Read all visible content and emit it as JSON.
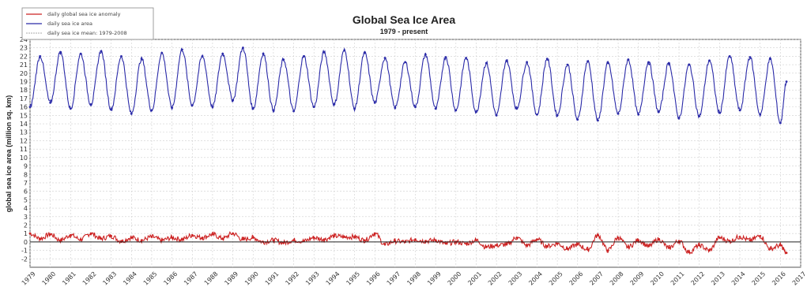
{
  "chart_data": {
    "type": "line",
    "title": "Global Sea Ice Area",
    "subtitle": "1979 - present",
    "ylabel": "global sea ice area (million sq. km)",
    "xlabel": "",
    "xlim": [
      1979,
      2017
    ],
    "ylim": [
      -3,
      24
    ],
    "grid": true,
    "legend_position": "top-left",
    "x_ticks": [
      "1979",
      "1980",
      "1981",
      "1982",
      "1983",
      "1984",
      "1985",
      "1986",
      "1987",
      "1988",
      "1989",
      "1990",
      "1991",
      "1992",
      "1993",
      "1994",
      "1995",
      "1996",
      "1997",
      "1998",
      "1999",
      "2000",
      "2001",
      "2002",
      "2003",
      "2004",
      "2005",
      "2006",
      "2007",
      "2008",
      "2009",
      "2010",
      "2011",
      "2012",
      "2013",
      "2014",
      "2015",
      "2016",
      "2017"
    ],
    "y_ticks": [
      -2,
      -1,
      0,
      1,
      2,
      3,
      4,
      5,
      6,
      7,
      8,
      9,
      10,
      11,
      12,
      13,
      14,
      15,
      16,
      17,
      18,
      19,
      20,
      21,
      22,
      23,
      24
    ],
    "series": [
      {
        "name": "daily global sea ice anomaly",
        "color": "#cc2222",
        "x": [
          1979,
          1979.5,
          1980,
          1980.5,
          1981,
          1981.5,
          1982,
          1982.5,
          1983,
          1983.5,
          1984,
          1984.5,
          1985,
          1985.5,
          1986,
          1986.5,
          1987,
          1987.5,
          1988,
          1988.5,
          1989,
          1989.5,
          1990,
          1990.5,
          1991,
          1991.5,
          1992,
          1992.5,
          1993,
          1993.5,
          1994,
          1994.5,
          1995,
          1995.5,
          1996,
          1996.5,
          1997,
          1997.5,
          1998,
          1998.5,
          1999,
          1999.5,
          2000,
          2000.5,
          2001,
          2001.5,
          2002,
          2002.5,
          2003,
          2003.5,
          2004,
          2004.5,
          2005,
          2005.5,
          2006,
          2006.5,
          2007,
          2007.5,
          2008,
          2008.5,
          2009,
          2009.5,
          2010,
          2010.5,
          2011,
          2011.5,
          2012,
          2012.5,
          2013,
          2013.5,
          2014,
          2014.5,
          2015,
          2015.5,
          2016,
          2016.3
        ],
        "values": [
          1.0,
          0.4,
          0.9,
          0.2,
          0.8,
          0.3,
          1.0,
          0.4,
          0.7,
          0.1,
          0.5,
          0.2,
          0.6,
          0.2,
          0.5,
          0.3,
          0.8,
          0.5,
          0.9,
          0.4,
          1.0,
          0.3,
          0.5,
          0.0,
          0.2,
          -0.1,
          0.2,
          0.1,
          0.5,
          0.3,
          0.7,
          0.6,
          0.6,
          0.2,
          1.0,
          -0.3,
          0.1,
          0.0,
          0.3,
          0.1,
          0.2,
          -0.2,
          0.0,
          -0.2,
          0.2,
          -0.6,
          -0.4,
          -0.3,
          0.5,
          -0.4,
          0.3,
          -0.5,
          -0.2,
          -0.8,
          -0.3,
          -0.9,
          0.8,
          -1.0,
          0.5,
          -0.6,
          0.2,
          -0.5,
          0.3,
          -0.7,
          0.1,
          -1.2,
          -0.4,
          -1.0,
          0.5,
          0.1,
          0.6,
          0.2,
          0.7,
          -0.8,
          -0.4,
          -1.3
        ]
      },
      {
        "name": "daily sea ice area",
        "color": "#2a2aa8",
        "x": [
          1979,
          1979.5,
          1980,
          1980.5,
          1981,
          1981.5,
          1982,
          1982.5,
          1983,
          1983.5,
          1984,
          1984.5,
          1985,
          1985.5,
          1986,
          1986.5,
          1987,
          1987.5,
          1988,
          1988.5,
          1989,
          1989.5,
          1990,
          1990.5,
          1991,
          1991.5,
          1992,
          1992.5,
          1993,
          1993.5,
          1994,
          1994.5,
          1995,
          1995.5,
          1996,
          1996.5,
          1997,
          1997.5,
          1998,
          1998.5,
          1999,
          1999.5,
          2000,
          2000.5,
          2001,
          2001.5,
          2002,
          2002.5,
          2003,
          2003.5,
          2004,
          2004.5,
          2005,
          2005.5,
          2006,
          2006.5,
          2007,
          2007.5,
          2008,
          2008.5,
          2009,
          2009.5,
          2010,
          2010.5,
          2011,
          2011.5,
          2012,
          2012.5,
          2013,
          2013.5,
          2014,
          2014.5,
          2015,
          2015.5,
          2016,
          2016.3
        ],
        "values": [
          16.0,
          22.0,
          16.5,
          22.5,
          15.8,
          22.3,
          16.3,
          22.6,
          15.7,
          22.0,
          15.2,
          21.7,
          15.6,
          22.4,
          15.9,
          22.8,
          16.2,
          22.0,
          16.0,
          22.3,
          16.8,
          23.0,
          15.8,
          22.3,
          15.6,
          21.6,
          15.5,
          22.0,
          16.0,
          22.5,
          16.3,
          22.7,
          15.8,
          22.4,
          16.5,
          21.8,
          15.9,
          21.3,
          16.0,
          22.2,
          15.8,
          21.9,
          15.6,
          21.8,
          15.4,
          21.2,
          15.0,
          21.5,
          15.8,
          21.3,
          15.1,
          21.7,
          15.0,
          21.0,
          14.5,
          21.4,
          14.4,
          21.2,
          15.2,
          21.6,
          15.1,
          21.3,
          15.4,
          21.2,
          14.7,
          21.0,
          14.9,
          21.5,
          15.3,
          22.0,
          15.6,
          21.9,
          15.1,
          21.7,
          14.1,
          19.0
        ]
      },
      {
        "name": "daily sea ice mean: 1979-2008",
        "color": "#bbbbbb",
        "x": [],
        "values": []
      }
    ]
  }
}
